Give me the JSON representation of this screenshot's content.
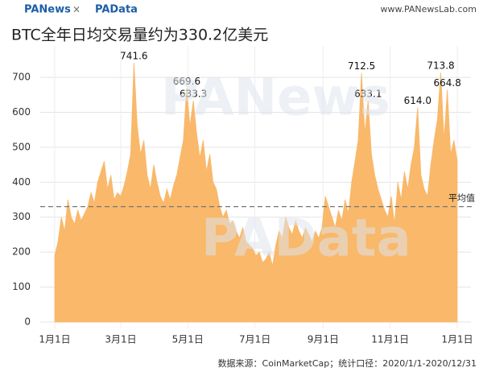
{
  "header": {
    "brand_left": "PANews",
    "brand_sep": "×",
    "brand_right": "PAData",
    "site": "www.PANewsLab.com"
  },
  "watermarks": [
    "PANews",
    "PAData"
  ],
  "chart_data": {
    "type": "area",
    "title": "BTC全年日均交易量约为330.2亿美元",
    "source": "数据来源：CoinMarketCap；统计口径：2020/1/1-2020/12/31",
    "color": "#f9b86a",
    "grid": true,
    "x": [
      0,
      3,
      6,
      9,
      12,
      15,
      18,
      21,
      24,
      27,
      30,
      33,
      36,
      39,
      42,
      45,
      48,
      51,
      54,
      57,
      60,
      63,
      66,
      69,
      72,
      75,
      78,
      81,
      84,
      87,
      90,
      93,
      96,
      99,
      102,
      105,
      108,
      111,
      114,
      117,
      120,
      123,
      126,
      129,
      132,
      135,
      138,
      141,
      144,
      147,
      150,
      153,
      156,
      159,
      162,
      165,
      168,
      171,
      174,
      177,
      180,
      183,
      186,
      189,
      192,
      195,
      198,
      201,
      204,
      207,
      210,
      213,
      216,
      219,
      222,
      225,
      228,
      231,
      234,
      237,
      240,
      243,
      246,
      249,
      252,
      255,
      258,
      261,
      264,
      267,
      270,
      273,
      276,
      279,
      282,
      285,
      288,
      291,
      294,
      297,
      300,
      303,
      306,
      309,
      312,
      315,
      318,
      321,
      324,
      327,
      330,
      333,
      336,
      339,
      342,
      345,
      348,
      351,
      354,
      357,
      360,
      363,
      366
    ],
    "values": [
      190,
      230,
      300,
      260,
      350,
      300,
      280,
      320,
      290,
      310,
      330,
      370,
      340,
      400,
      430,
      460,
      380,
      420,
      350,
      370,
      360,
      390,
      430,
      480,
      741.6,
      560,
      480,
      520,
      420,
      380,
      450,
      400,
      360,
      340,
      380,
      350,
      390,
      420,
      470,
      520,
      669.6,
      560,
      633.3,
      540,
      470,
      520,
      430,
      480,
      400,
      380,
      330,
      300,
      320,
      280,
      290,
      260,
      240,
      270,
      230,
      220,
      210,
      190,
      200,
      170,
      180,
      200,
      160,
      220,
      260,
      240,
      300,
      270,
      250,
      290,
      260,
      240,
      270,
      250,
      230,
      260,
      240,
      270,
      360,
      330,
      300,
      270,
      320,
      290,
      350,
      310,
      400,
      460,
      520,
      712.5,
      540,
      633.1,
      480,
      420,
      380,
      350,
      320,
      300,
      360,
      280,
      400,
      350,
      430,
      380,
      450,
      500,
      614,
      420,
      380,
      360,
      450,
      520,
      580,
      713.8,
      520,
      664.8,
      480,
      520,
      460
    ],
    "value_labels": [
      null,
      null,
      null,
      null,
      null,
      null,
      null,
      null,
      null,
      null,
      null,
      null,
      null,
      null,
      null,
      null,
      null,
      null,
      null,
      null,
      null,
      null,
      null,
      null,
      "741.6",
      null,
      null,
      null,
      null,
      null,
      null,
      null,
      null,
      null,
      null,
      null,
      null,
      null,
      null,
      null,
      "669.6",
      null,
      "633.3",
      null,
      null,
      null,
      null,
      null,
      null,
      null,
      null,
      null,
      null,
      null,
      null,
      null,
      null,
      null,
      null,
      null,
      null,
      null,
      null,
      null,
      null,
      null,
      null,
      null,
      null,
      null,
      null,
      null,
      null,
      null,
      null,
      null,
      null,
      null,
      null,
      null,
      null,
      null,
      null,
      null,
      null,
      null,
      null,
      null,
      null,
      null,
      null,
      null,
      null,
      "712.5",
      null,
      "633.1",
      null,
      null,
      null,
      null,
      null,
      null,
      null,
      null,
      null,
      null,
      null,
      null,
      null,
      null,
      "614.0",
      null,
      null,
      null,
      null,
      null,
      null,
      "713.8",
      null,
      "664.8",
      null,
      null,
      null
    ],
    "xlim": [
      0,
      366
    ],
    "xticks": [
      {
        "value": 0,
        "label": "1月1日"
      },
      {
        "value": 60,
        "label": "3月1日"
      },
      {
        "value": 121,
        "label": "5月1日"
      },
      {
        "value": 182,
        "label": "7月1日"
      },
      {
        "value": 244,
        "label": "9月1日"
      },
      {
        "value": 305,
        "label": "11月1日"
      },
      {
        "value": 366,
        "label": "1月1日"
      }
    ],
    "ylim": [
      0,
      790
    ],
    "yticks": [
      0,
      100,
      200,
      300,
      400,
      500,
      600,
      700
    ],
    "average": {
      "value": 330.2,
      "label": "平均值"
    }
  }
}
